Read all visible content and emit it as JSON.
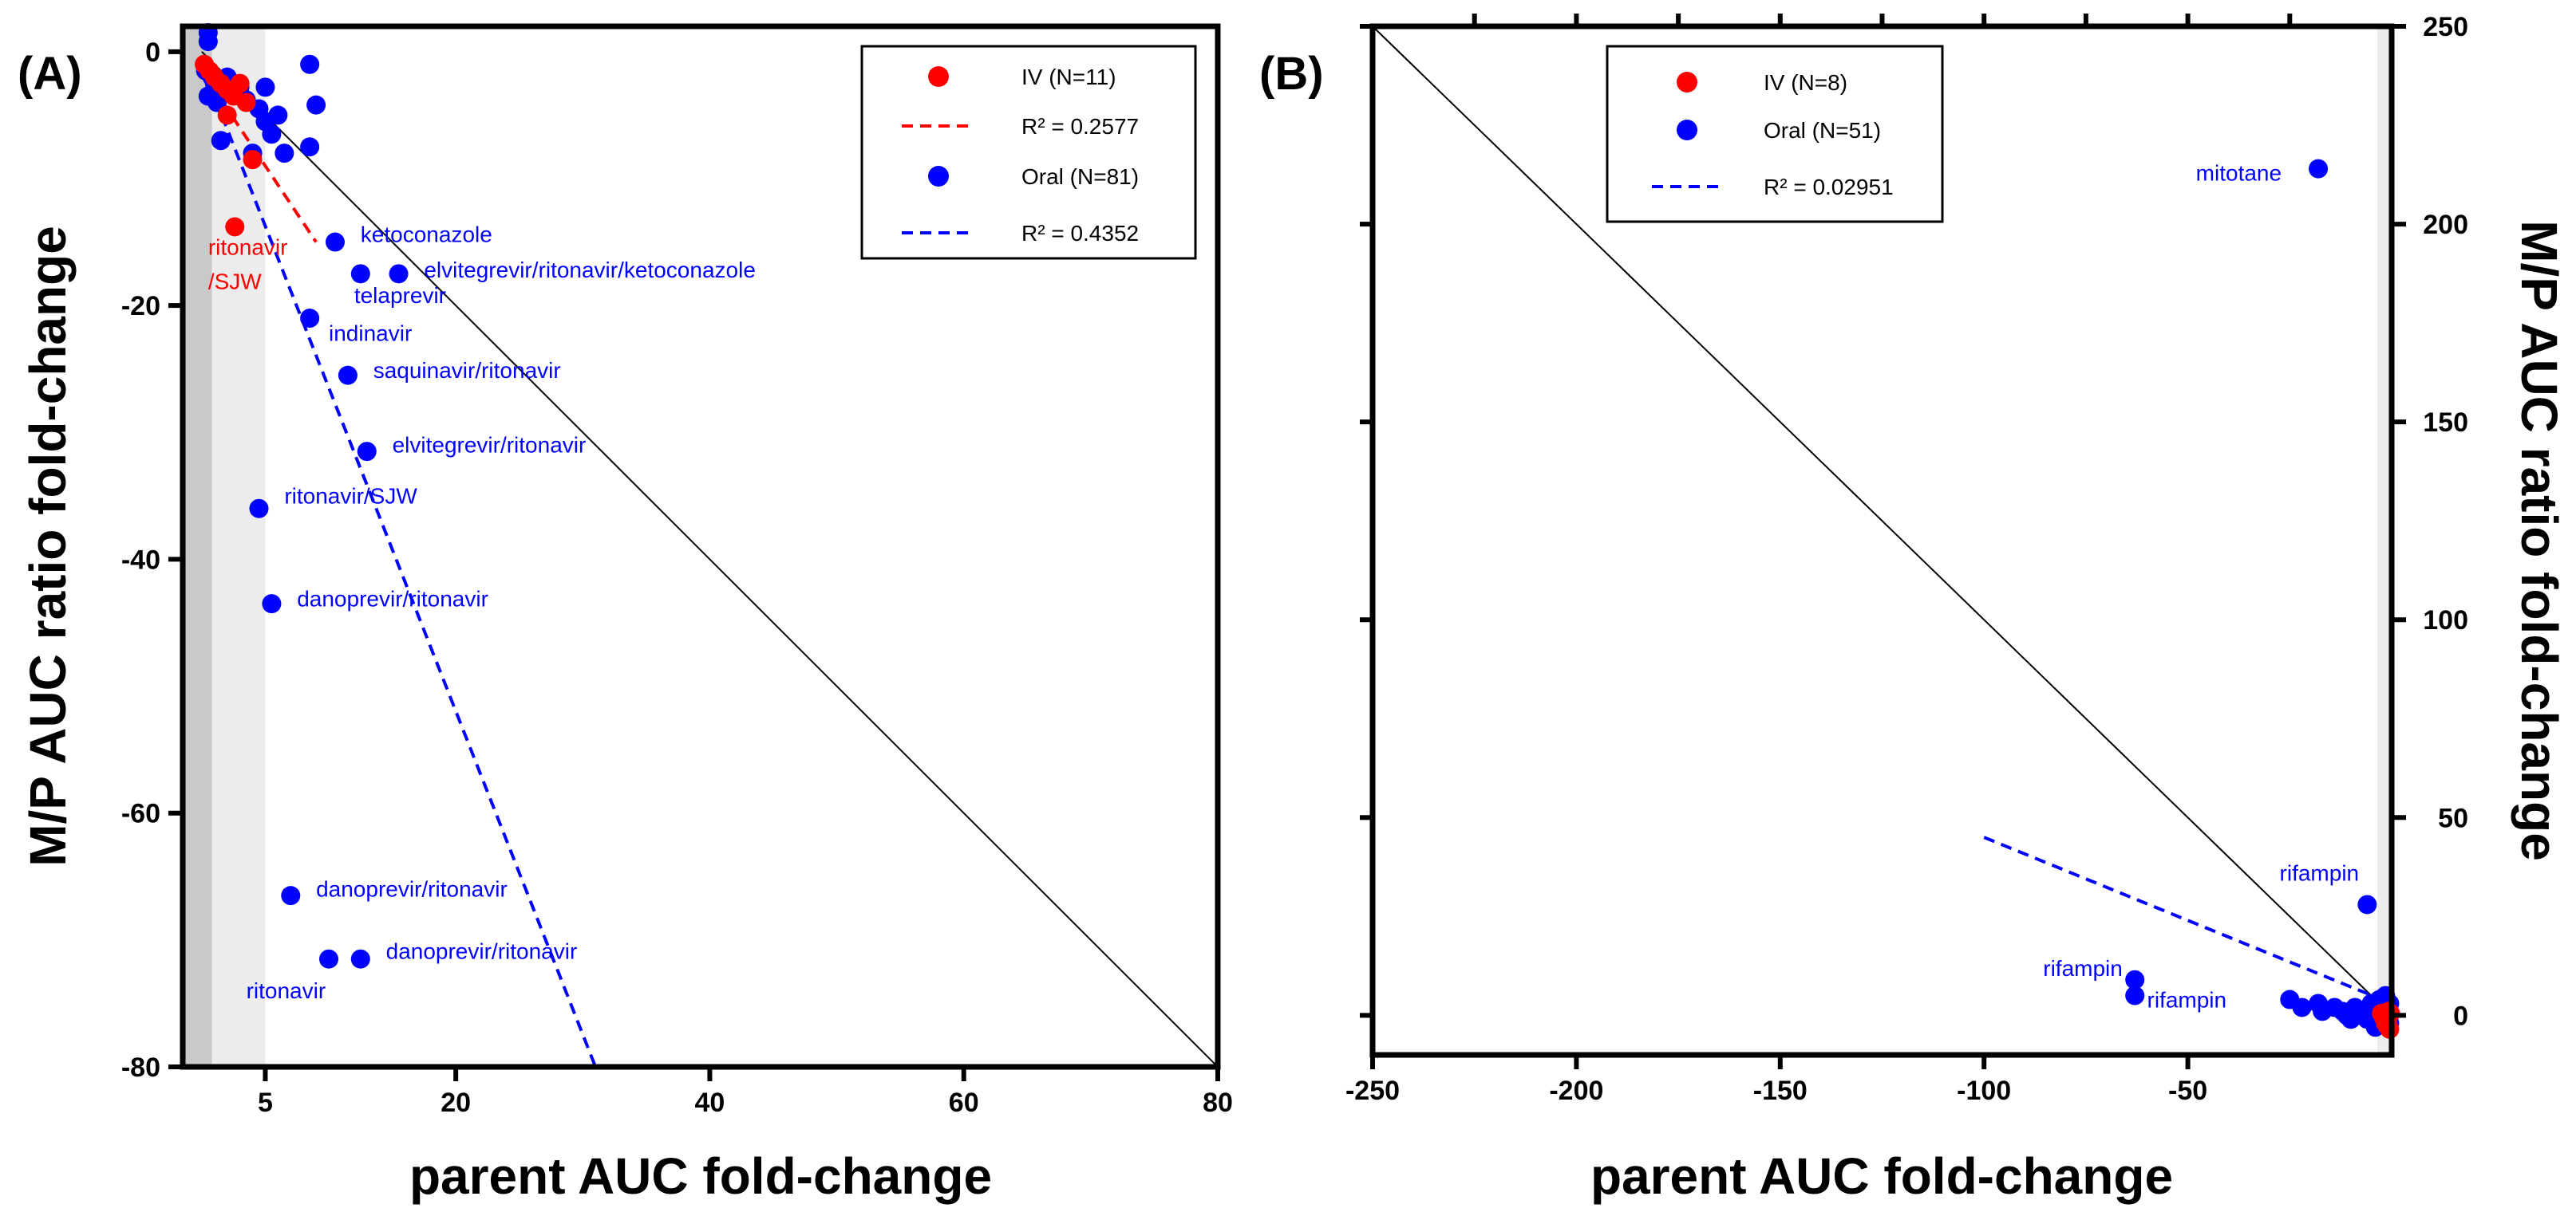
{
  "colors": {
    "iv": "#ff0000",
    "oral": "#0000ff",
    "identity": "#000000",
    "shade_dark": "#c9c9c9",
    "shade_light": "#ececec"
  },
  "chart_data": [
    {
      "panel": "(A)",
      "type": "scatter",
      "xlabel": "parent AUC fold-change",
      "ylabel": "M/P AUC ratio fold-change",
      "xlim": [
        -1.5,
        80
      ],
      "ylim": [
        -80,
        2
      ],
      "xticks": [
        5,
        20,
        40,
        60,
        80
      ],
      "xtick_labels": [
        "5",
        "20",
        "40",
        "60",
        "80"
      ],
      "yticks": [
        0,
        -20,
        -40,
        -60,
        -80
      ],
      "ytick_labels": [
        "0",
        "-20",
        "-40",
        "-60",
        "-80"
      ],
      "shaded_bands": [
        [
          -1.5,
          0.8
        ],
        [
          0.8,
          5
        ]
      ],
      "identity_line": [
        [
          0,
          0
        ],
        [
          80,
          -80
        ]
      ],
      "legend_position": "top-right",
      "series": [
        {
          "name": "IV (N=11)",
          "color_key": "iv",
          "points": [
            [
              0.2,
              -1.0
            ],
            [
              0.6,
              -1.5
            ],
            [
              1.0,
              -2.0
            ],
            [
              1.5,
              -2.5
            ],
            [
              2.0,
              -3.0
            ],
            [
              2.5,
              -3.5
            ],
            [
              3.0,
              -2.5
            ],
            [
              3.5,
              -4.0
            ],
            [
              2.0,
              -5.0
            ],
            [
              4.0,
              -8.5
            ],
            [
              2.6,
              -13.8
            ]
          ],
          "fit": {
            "label": "R² = 0.2577",
            "r2": "0.2577",
            "line": [
              [
                0,
                -1.5
              ],
              [
                9,
                -15
              ]
            ]
          }
        },
        {
          "name": "Oral (N=81)",
          "color_key": "oral",
          "points": [
            [
              0.5,
              1.5
            ],
            [
              0.5,
              0.8
            ],
            [
              0.3,
              -1.5
            ],
            [
              0.8,
              -2.0
            ],
            [
              1.0,
              -2.5
            ],
            [
              1.5,
              -3.0
            ],
            [
              0.5,
              -3.5
            ],
            [
              1.2,
              -4.0
            ],
            [
              2.0,
              -2.0
            ],
            [
              2.5,
              -3.0
            ],
            [
              3.0,
              -2.8
            ],
            [
              3.5,
              -3.8
            ],
            [
              4.5,
              -4.5
            ],
            [
              5.0,
              -5.5
            ],
            [
              5.5,
              -6.5
            ],
            [
              6.0,
              -5.0
            ],
            [
              6.5,
              -8.0
            ],
            [
              5.0,
              -2.8
            ],
            [
              1.5,
              -7.0
            ],
            [
              4.0,
              -8.0
            ],
            [
              8.5,
              -1.0
            ],
            [
              9.0,
              -4.2
            ],
            [
              8.5,
              -7.5
            ],
            [
              10.5,
              -15.0
            ],
            [
              12.5,
              -17.5
            ],
            [
              15.5,
              -17.5
            ],
            [
              8.5,
              -21.0
            ],
            [
              11.5,
              -25.5
            ],
            [
              13.0,
              -31.5
            ],
            [
              4.5,
              -36.0
            ],
            [
              5.5,
              -43.5
            ],
            [
              7.0,
              -66.5
            ],
            [
              10.0,
              -71.5
            ],
            [
              12.5,
              -71.5
            ]
          ],
          "fit": {
            "label": "R² = 0.4352",
            "r2": "0.4352",
            "line": [
              [
                0,
                -1
              ],
              [
                31,
                -80
              ]
            ]
          }
        }
      ],
      "annotations": [
        {
          "text": "ritonavir",
          "x": 0.5,
          "y": -16,
          "color_key": "iv"
        },
        {
          "text": "/SJW",
          "x": 0.5,
          "y": -18.7,
          "color_key": "iv"
        },
        {
          "text": "ketoconazole",
          "x": 12.5,
          "y": -15.0,
          "color_key": "oral"
        },
        {
          "text": "elvitegrevir/ritonavir/ketoconazole",
          "x": 17.5,
          "y": -17.8,
          "color_key": "oral"
        },
        {
          "text": "telaprevir",
          "x": 12.0,
          "y": -19.8,
          "color_key": "oral"
        },
        {
          "text": "indinavir",
          "x": 10.0,
          "y": -22.8,
          "color_key": "oral"
        },
        {
          "text": "saquinavir/ritonavir",
          "x": 13.5,
          "y": -25.7,
          "color_key": "oral"
        },
        {
          "text": "elvitegrevir/ritonavir",
          "x": 15.0,
          "y": -31.6,
          "color_key": "oral"
        },
        {
          "text": "ritonavir/SJW",
          "x": 6.5,
          "y": -35.6,
          "color_key": "oral"
        },
        {
          "text": "danoprevir/ritonavir",
          "x": 7.5,
          "y": -43.7,
          "color_key": "oral"
        },
        {
          "text": "danoprevir/ritonavir",
          "x": 9.0,
          "y": -66.6,
          "color_key": "oral"
        },
        {
          "text": "danoprevir/ritonavir",
          "x": 14.5,
          "y": -71.5,
          "color_key": "oral"
        },
        {
          "text": "ritonavir",
          "x": 3.5,
          "y": -74.6,
          "color_key": "oral"
        }
      ]
    },
    {
      "panel": "(B)",
      "type": "scatter",
      "xlabel": "parent AUC fold-change",
      "ylabel": "M/P AUC ratio fold-change",
      "xlim": [
        -250,
        0
      ],
      "ylim": [
        -10,
        250
      ],
      "xticks": [
        -250,
        -200,
        -150,
        -100,
        -50
      ],
      "xtick_labels": [
        "-250",
        "-200",
        "-150",
        "-100",
        "-50"
      ],
      "yticks": [
        0,
        50,
        100,
        150,
        200,
        250
      ],
      "ytick_labels": [
        "0",
        "50",
        "100",
        "150",
        "200",
        "250"
      ],
      "shaded_bands": [
        [
          -3.5,
          0
        ]
      ],
      "identity_line": [
        [
          -250,
          250
        ],
        [
          0,
          0
        ]
      ],
      "legend_position": "top-center",
      "series": [
        {
          "name": "IV (N=8)",
          "color_key": "iv",
          "points": [
            [
              -0.5,
              -3.5
            ],
            [
              -1.0,
              -1.0
            ],
            [
              -1.5,
              -2.0
            ],
            [
              -0.8,
              1.0
            ],
            [
              -2.0,
              -0.5
            ],
            [
              -0.3,
              0.5
            ],
            [
              -1.2,
              -2.5
            ],
            [
              -2.5,
              0.5
            ]
          ]
        },
        {
          "name": "Oral (N=51)",
          "color_key": "oral",
          "points": [
            [
              -18,
              214
            ],
            [
              -6,
              28
            ],
            [
              -63,
              9
            ],
            [
              -63,
              5
            ],
            [
              -25,
              4
            ],
            [
              -22,
              2
            ],
            [
              -18,
              3
            ],
            [
              -17,
              1
            ],
            [
              -14,
              2
            ],
            [
              -12,
              1
            ],
            [
              -11,
              0
            ],
            [
              -10,
              -1
            ],
            [
              -9,
              2
            ],
            [
              -8,
              1
            ],
            [
              -7,
              0
            ],
            [
              -6,
              -1
            ],
            [
              -5,
              3
            ],
            [
              -5,
              1
            ],
            [
              -4,
              2
            ],
            [
              -3,
              0
            ],
            [
              -3,
              4
            ],
            [
              -2,
              -1
            ],
            [
              -2,
              2
            ],
            [
              -1,
              1
            ],
            [
              -1,
              0
            ],
            [
              -0.5,
              3
            ],
            [
              -0.5,
              -2
            ],
            [
              -1.5,
              5
            ],
            [
              -4,
              -3
            ]
          ]
        }
      ],
      "fit": {
        "label": "R² = 0.02951",
        "r2": "0.02951",
        "line": [
          [
            -100,
            45
          ],
          [
            0,
            3
          ]
        ]
      },
      "annotations": [
        {
          "text": "mitotane",
          "x": -27,
          "y": 211,
          "color_key": "oral",
          "anchor": "end"
        },
        {
          "text": "rifampin",
          "x": -8,
          "y": 34,
          "color_key": "oral",
          "anchor": "end"
        },
        {
          "text": "rifampin",
          "x": -66,
          "y": 10,
          "color_key": "oral",
          "anchor": "end"
        },
        {
          "text": "rifampin",
          "x": -60,
          "y": 2,
          "color_key": "oral",
          "anchor": "start"
        }
      ]
    }
  ],
  "legend_a": {
    "iv_label": "IV (N=11)",
    "iv_fit": "R² = 0.2577",
    "oral_label": "Oral (N=81)",
    "oral_fit": "R² = 0.4352"
  },
  "legend_b": {
    "iv_label": "IV (N=8)",
    "oral_label": "Oral (N=51)",
    "oral_fit": "R² = 0.02951"
  },
  "panel_a": {
    "letter": "(A)",
    "xlabel": "parent AUC fold-change",
    "ylabel": "M/P AUC ratio fold-change"
  },
  "panel_b": {
    "letter": "(B)",
    "xlabel": "parent AUC fold-change",
    "ylabel": "M/P AUC ratio fold-change"
  }
}
